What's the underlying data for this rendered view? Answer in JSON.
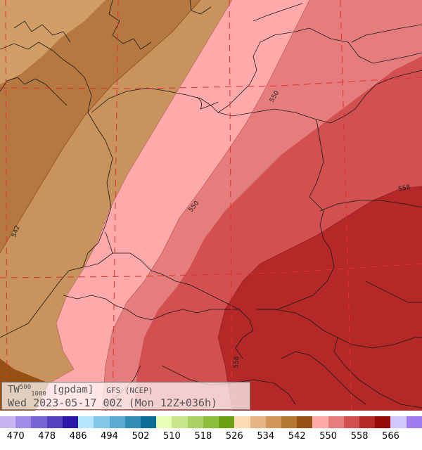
{
  "title": {
    "field": "TW",
    "sup": "500",
    "sub": "1000",
    "units": "[gpdam]",
    "source": "GFS (NCEP)",
    "timestamp": "Wed 2023-05-17 00Z (Mon 12Z+036h)"
  },
  "contour_labels": [
    "542",
    "550",
    "550",
    "558",
    "558"
  ],
  "legend": {
    "colors": [
      "#c8b4f0",
      "#a08ce6",
      "#7864d2",
      "#5540be",
      "#2b14a8",
      "#b4e6ff",
      "#82c8e6",
      "#5aaad2",
      "#328cb4",
      "#0a6e96",
      "#e6ffb4",
      "#c8e68c",
      "#aad264",
      "#8cbe3c",
      "#6ea014",
      "#ffdcb4",
      "#e6b482",
      "#d2965a",
      "#b47832",
      "#965014",
      "#ffaaaa",
      "#e67d7d",
      "#d25050",
      "#b42828",
      "#960a0a",
      "#d2c8ff",
      "#9e7cf0"
    ],
    "ticks": [
      "470",
      "478",
      "486",
      "494",
      "502",
      "510",
      "518",
      "526",
      "534",
      "542",
      "550",
      "558",
      "566"
    ]
  },
  "colors": {
    "band_538": "#c08a50",
    "band_542": "#965014",
    "band_546": "#ffaaaa",
    "band_550": "#e67d7d",
    "band_554": "#d25050",
    "band_558": "#b42828",
    "grid": "#e03030",
    "border": "#1a1a1a"
  }
}
